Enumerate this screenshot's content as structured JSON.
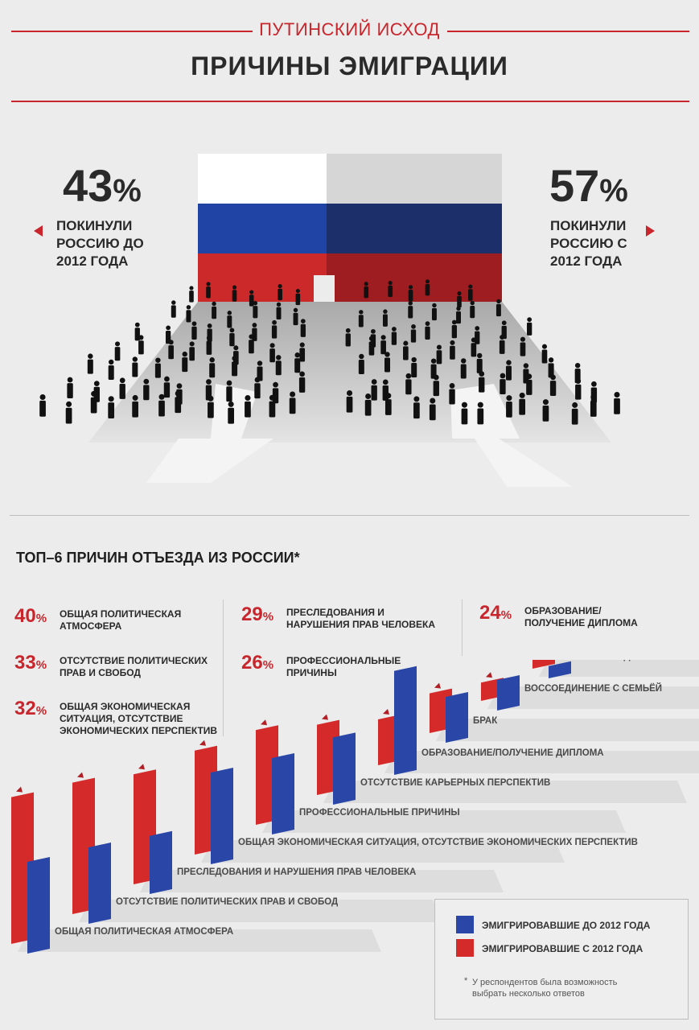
{
  "header": {
    "kicker": "ПУТИНСКИЙ ИСХОД",
    "title": "ПРИЧИНЫ ЭМИГРАЦИИ"
  },
  "split": {
    "left": {
      "number": "43",
      "unit": "%",
      "label": [
        "ПОКИНУЛИ",
        "РОССИЮ ДО",
        "2012 ГОДА"
      ]
    },
    "right": {
      "number": "57",
      "unit": "%",
      "label": [
        "ПОКИНУЛИ",
        "РОССИЮ С",
        "2012 ГОДА"
      ]
    }
  },
  "top6": {
    "title": "ТОП–6 ПРИЧИН ОТЪЕЗДА ИЗ РОССИИ*",
    "items": [
      {
        "num": "40",
        "unit": "%",
        "lines": [
          "ОБЩАЯ ПОЛИТИЧЕСКАЯ",
          "АТМОСФЕРА"
        ]
      },
      {
        "num": "33",
        "unit": "%",
        "lines": [
          "ОТСУТСТВИЕ ПОЛИТИЧЕСКИХ",
          "ПРАВ И СВОБОД"
        ]
      },
      {
        "num": "32",
        "unit": "%",
        "lines": [
          "ОБЩАЯ ЭКОНОМИЧЕСКАЯ",
          "СИТУАЦИЯ, ОТСУТСТВИЕ",
          "ЭКОНОМИЧЕСКИХ ПЕРСПЕКТИВ"
        ]
      },
      {
        "num": "29",
        "unit": "%",
        "lines": [
          "ПРЕСЛЕДОВАНИЯ И",
          "НАРУШЕНИЯ ПРАВ ЧЕЛОВЕКА"
        ]
      },
      {
        "num": "26",
        "unit": "%",
        "lines": [
          "ПРОФЕССИОНАЛЬНЫЕ",
          "ПРИЧИНЫ"
        ]
      },
      {
        "num": "24",
        "unit": "%",
        "lines": [
          "ОБРАЗОВАНИЕ/",
          "ПОЛУЧЕНИЕ ДИПЛОМА"
        ]
      }
    ]
  },
  "legend": {
    "before": "ЭМИГРИРОВАВШИЕ ДО 2012 ГОДА",
    "after": "ЭМИГРИРОВАВШИЕ С 2012 ГОДА",
    "note_star": "*",
    "note": [
      "У респондентов была возможность",
      "выбрать несколько ответов"
    ]
  },
  "colors": {
    "red": "#d42a2a",
    "blue": "#2a47a8",
    "accent": "#c8262c"
  },
  "chart_data": {
    "type": "bar",
    "title": "",
    "categories": [
      "ОБЩАЯ ПОЛИТИЧЕСКАЯ АТМОСФЕРА",
      "ОТСУТСТВИЕ ПОЛИТИЧЕСКИХ ПРАВ И СВОБОД",
      "ПРЕСЛЕДОВАНИЯ И НАРУШЕНИЯ ПРАВ ЧЕЛОВЕКА",
      "ОБЩАЯ ЭКОНОМИЧЕСКАЯ СИТУАЦИЯ, ОТСУТСТВИЕ ЭКОНОМИЧЕСКИХ ПЕРСПЕКТИВ",
      "ПРОФЕССИОНАЛЬНЫЕ ПРИЧИНЫ",
      "ОТСУТСТВИЕ КАРЬЕРНЫХ ПЕРСПЕКТИВ",
      "ОБРАЗОВАНИЕ/ПОЛУЧЕНИЕ ДИПЛОМА",
      "БРАК",
      "ВОССОЕДИНЕНИЕ С СЕМЬЁЙ",
      [
        "РЕЛИГИОЗНЫЕ",
        "ПРЕСЛЕДОВАНИЯ"
      ]
    ],
    "series": [
      {
        "name": "ЭМИГРИРОВАВШИЕ С 2012 ГОДА",
        "color": "#d42a2a",
        "values": [
          48,
          43,
          36,
          34,
          31,
          23,
          15,
          13,
          6,
          6
        ]
      },
      {
        "name": "ЭМИГРИРОВАВШИЕ ДО 2012 ГОДА",
        "color": "#2a47a8",
        "values": [
          30,
          25,
          19,
          30,
          25,
          22,
          34,
          15,
          10,
          4
        ]
      }
    ],
    "ylim": [
      0,
      50
    ]
  }
}
